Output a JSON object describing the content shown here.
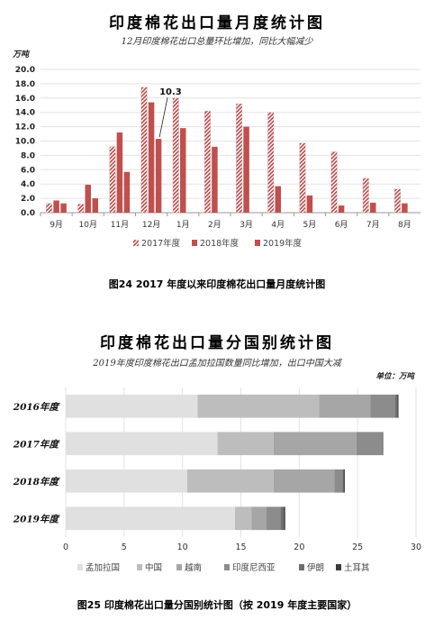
{
  "figures": [
    {
      "caption": "图24   2017 年度以来印度棉花出口量月度统计图",
      "chart_data": {
        "type": "bar",
        "title": "印度棉花出口量月度统计图",
        "subtitle": "12月印度棉花出口总量环比增加，同比大幅减少",
        "unit_label": "万吨",
        "categories": [
          "9月",
          "10月",
          "11月",
          "12月",
          "1月",
          "2月",
          "3月",
          "4月",
          "5月",
          "6月",
          "7月",
          "8月"
        ],
        "ylim": [
          0,
          20
        ],
        "yticks": [
          "0.0",
          "2.0",
          "4.0",
          "6.0",
          "8.0",
          "10.0",
          "12.0",
          "14.0",
          "16.0",
          "18.0",
          "20.0"
        ],
        "series": [
          {
            "name": "2017年度",
            "color": "#b5494a",
            "pattern": "hatch",
            "values": [
              1.3,
              1.2,
              9.2,
              17.5,
              16.0,
              14.2,
              15.2,
              14.0,
              9.7,
              8.5,
              4.8,
              3.3
            ]
          },
          {
            "name": "2018年度",
            "color": "#c0504d",
            "pattern": "solid",
            "values": [
              1.7,
              3.9,
              11.2,
              15.4,
              11.8,
              9.2,
              12.0,
              3.7,
              2.4,
              1.0,
              1.4,
              1.3
            ]
          },
          {
            "name": "2019年度",
            "color": "#c0504d",
            "pattern": "solid",
            "values": [
              1.3,
              2.0,
              5.7,
              10.3,
              null,
              null,
              null,
              null,
              null,
              null,
              null,
              null
            ]
          }
        ],
        "annotation": {
          "label": "10.3",
          "category": "12月",
          "series": "2019年度"
        }
      }
    },
    {
      "caption": "图25   印度棉花出口量分国别统计图（按 2019 年度主要国家）",
      "chart_data": {
        "type": "bar",
        "orientation": "horizontal",
        "stacked": true,
        "title": "印度棉花出口量分国别统计图",
        "subtitle": "2019年度印度棉花出口孟加拉国数量同比增加，出口中国大减",
        "unit_label": "单位：万吨",
        "categories": [
          "2016年度",
          "2017年度",
          "2018年度",
          "2019年度"
        ],
        "xlim": [
          0,
          30
        ],
        "xticks": [
          "0",
          "5",
          "10",
          "15",
          "20",
          "25",
          "30"
        ],
        "series": [
          {
            "name": "孟加拉国",
            "color": "#e0e0e0",
            "values": [
              11.3,
              13.0,
              10.4,
              14.5
            ]
          },
          {
            "name": "中国",
            "color": "#bdbdbd",
            "values": [
              10.4,
              4.8,
              7.4,
              1.4
            ]
          },
          {
            "name": "越南",
            "color": "#a6a6a6",
            "values": [
              4.4,
              7.1,
              5.2,
              1.3
            ]
          },
          {
            "name": "印度尼西亚",
            "color": "#8c8c8c",
            "values": [
              2.1,
              2.2,
              0.7,
              1.2
            ]
          },
          {
            "name": "伊朗",
            "color": "#6e6e6e",
            "values": [
              0.2,
              0.1,
              0.1,
              0.3
            ]
          },
          {
            "name": "土耳其",
            "color": "#3a3a3a",
            "values": [
              0.1,
              0.0,
              0.1,
              0.1
            ]
          }
        ]
      }
    }
  ]
}
